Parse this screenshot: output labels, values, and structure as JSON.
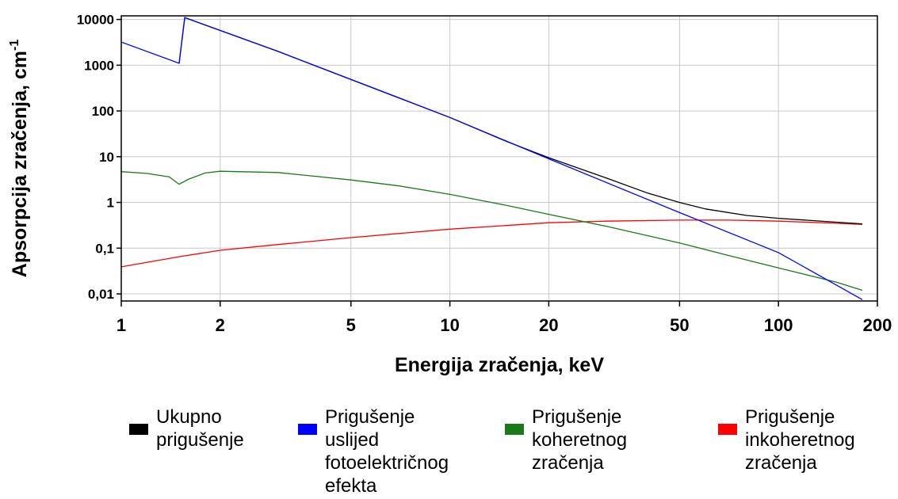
{
  "chart_data": {
    "type": "line",
    "xlabel": "Energija zračenja, keV",
    "ylabel": "Apsorpcija zračenja, cm",
    "ylabel_superscript": "-1",
    "x_scale": "log",
    "y_scale": "log",
    "xlim": [
      1,
      200
    ],
    "ylim": [
      0.007,
      12000
    ],
    "grid": true,
    "legend_position": "bottom",
    "x_ticks": [
      {
        "value": 1,
        "label": "1"
      },
      {
        "value": 2,
        "label": "2"
      },
      {
        "value": 5,
        "label": "5"
      },
      {
        "value": 10,
        "label": "10"
      },
      {
        "value": 20,
        "label": "20"
      },
      {
        "value": 50,
        "label": "50"
      },
      {
        "value": 100,
        "label": "100"
      },
      {
        "value": 200,
        "label": "200"
      }
    ],
    "y_ticks": [
      {
        "value": 0.01,
        "label": "0,01"
      },
      {
        "value": 0.1,
        "label": "0,1"
      },
      {
        "value": 1,
        "label": "1"
      },
      {
        "value": 10,
        "label": "10"
      },
      {
        "value": 100,
        "label": "100"
      },
      {
        "value": 1000,
        "label": "1000"
      },
      {
        "value": 10000,
        "label": "10000"
      }
    ],
    "series": [
      {
        "name": "Ukupno prigušenje",
        "color": "#000000",
        "points": [
          [
            1.5,
            1100
          ],
          [
            1.56,
            11000
          ],
          [
            3,
            2000
          ],
          [
            10,
            72
          ],
          [
            15,
            21
          ],
          [
            20,
            9.5
          ],
          [
            30,
            3.4
          ],
          [
            40,
            1.6
          ],
          [
            50,
            1.0
          ],
          [
            60,
            0.72
          ],
          [
            80,
            0.52
          ],
          [
            100,
            0.45
          ],
          [
            150,
            0.37
          ],
          [
            180,
            0.34
          ]
        ]
      },
      {
        "name": "Prigušenje uslijed fotoelektričnog efekta",
        "color": "#0000ff",
        "points": [
          [
            1,
            3200
          ],
          [
            1.5,
            1100
          ],
          [
            1.56,
            11000
          ],
          [
            3,
            2000
          ],
          [
            10,
            72
          ],
          [
            20,
            9
          ],
          [
            50,
            0.6
          ],
          [
            100,
            0.08
          ],
          [
            180,
            0.0075
          ]
        ]
      },
      {
        "name": "Prigušenje koheretnog zračenja",
        "color": "#1a7a1a",
        "points": [
          [
            1,
            4.7
          ],
          [
            1.2,
            4.3
          ],
          [
            1.4,
            3.6
          ],
          [
            1.5,
            2.5
          ],
          [
            1.6,
            3.2
          ],
          [
            1.8,
            4.4
          ],
          [
            2,
            4.8
          ],
          [
            3,
            4.5
          ],
          [
            5,
            3.1
          ],
          [
            7,
            2.3
          ],
          [
            10,
            1.5
          ],
          [
            15,
            0.85
          ],
          [
            20,
            0.55
          ],
          [
            30,
            0.3
          ],
          [
            50,
            0.13
          ],
          [
            70,
            0.07
          ],
          [
            100,
            0.037
          ],
          [
            150,
            0.018
          ],
          [
            180,
            0.012
          ]
        ]
      },
      {
        "name": "Prigušenje inkoheretnog zračenja",
        "color": "#ff0000",
        "points": [
          [
            1,
            0.039
          ],
          [
            1.5,
            0.065
          ],
          [
            2,
            0.09
          ],
          [
            3,
            0.12
          ],
          [
            5,
            0.17
          ],
          [
            10,
            0.26
          ],
          [
            20,
            0.36
          ],
          [
            30,
            0.39
          ],
          [
            50,
            0.41
          ],
          [
            70,
            0.41
          ],
          [
            100,
            0.39
          ],
          [
            150,
            0.35
          ],
          [
            180,
            0.33
          ]
        ]
      }
    ]
  },
  "legend": {
    "items": [
      {
        "label": "Ukupno\nprigušenje",
        "color": "#000000"
      },
      {
        "label": "Prigušenje\nuslijed\nfotoelektričnog\nefekta",
        "color": "#0000ff"
      },
      {
        "label": "Prigušenje\nkoheretnog\nzračenja",
        "color": "#1a7a1a"
      },
      {
        "label": "Prigušenje\ninkoheretnog\nzračenja",
        "color": "#ff0000"
      }
    ]
  }
}
